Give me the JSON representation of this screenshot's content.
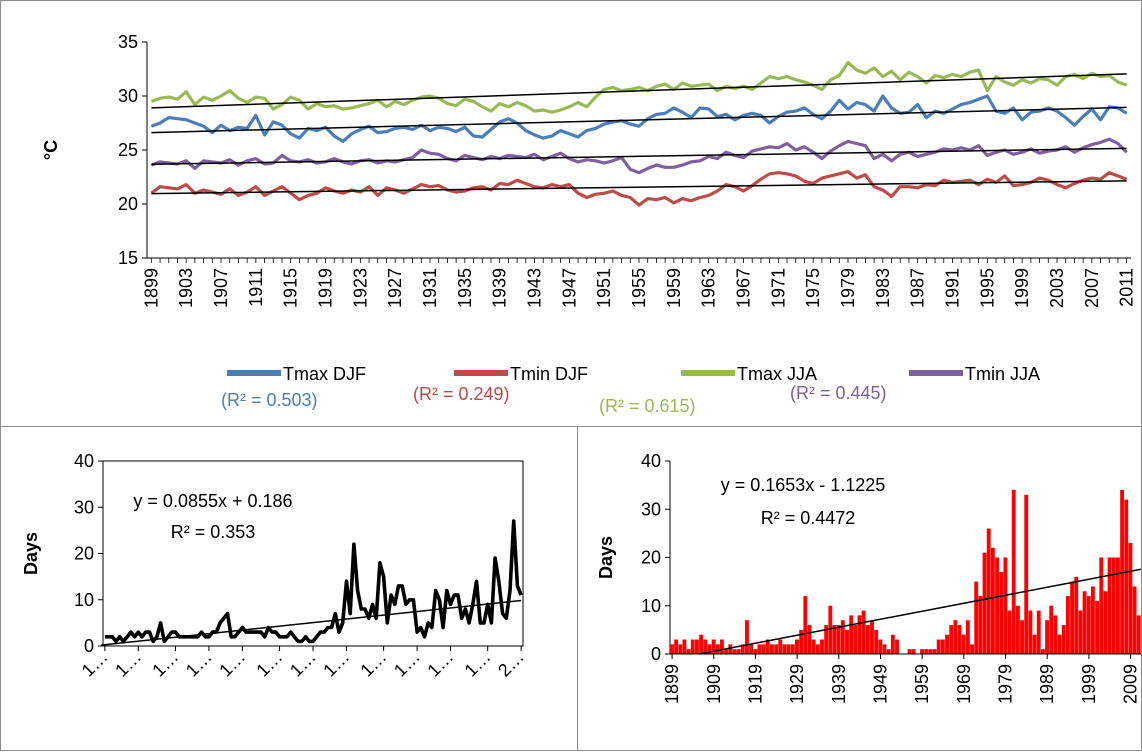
{
  "chart_data": [
    {
      "type": "line",
      "ylabel": "°C",
      "ylim": [
        15,
        35
      ],
      "yticks": [
        15,
        20,
        25,
        30,
        35
      ],
      "x_start": 1899,
      "x_end": 2011,
      "x_tick_labels": [
        "1899",
        "1903",
        "1907",
        "1911",
        "1915",
        "1919",
        "1923",
        "1927",
        "1931",
        "1935",
        "1939",
        "1943",
        "1947",
        "1951",
        "1955",
        "1959",
        "1963",
        "1967",
        "1971",
        "1975",
        "1979",
        "1983",
        "1987",
        "1991",
        "1995",
        "1999",
        "2003",
        "2007",
        "2011"
      ],
      "grid": false,
      "legend_position": "bottom",
      "trend_lines": true,
      "series": [
        {
          "name": "Tmax DJF",
          "color": "#4a7ebb",
          "r2_label": "(R² = 0.503)",
          "start": 1899,
          "values": [
            27.2,
            27.5,
            28,
            27.9,
            27.8,
            27.5,
            27.2,
            26.6,
            27.3,
            26.8,
            27.1,
            27.0,
            28.2,
            26.4,
            27.6,
            27.3,
            26.5,
            26.1,
            27.0,
            26.8,
            27.1,
            26.3,
            25.8,
            26.5,
            26.9,
            27.2,
            26.6,
            26.7,
            27.0,
            27.1,
            26.9,
            27.3,
            26.8,
            27.1,
            27.0,
            26.7,
            27.1,
            26.3,
            26.2,
            26.9,
            27.6,
            27.9,
            27.5,
            26.8,
            26.4,
            26.1,
            26.3,
            26.8,
            26.5,
            26.2,
            26.8,
            27.0,
            27.4,
            27.6,
            27.7,
            27.4,
            27.2,
            27.9,
            28.3,
            28.4,
            28.9,
            28.5,
            28.0,
            28.9,
            28.8,
            28.1,
            28.3,
            27.8,
            28.2,
            28.4,
            28.2,
            27.5,
            28.1,
            28.5,
            28.6,
            28.9,
            28.3,
            27.9,
            28.6,
            29.6,
            28.8,
            29.4,
            29.2,
            28.6,
            30.0,
            28.9,
            28.4,
            28.5,
            29.2,
            28.0,
            28.6,
            28.4,
            28.8,
            29.2,
            29.4,
            29.7,
            30.0,
            28.6,
            28.4,
            28.9,
            27.8,
            28.5,
            28.6,
            28.9,
            28.6,
            28.0,
            27.3,
            28.1,
            28.8,
            27.8,
            29.0,
            28.9,
            28.4
          ]
        },
        {
          "name": "Tmin DJF",
          "color": "#be4b48",
          "r2_label": "(R² = 0.249)",
          "start": 1899,
          "values": [
            21.0,
            21.6,
            21.5,
            21.4,
            21.8,
            21.0,
            21.3,
            21.1,
            20.9,
            21.4,
            20.8,
            21.1,
            21.6,
            20.8,
            21.2,
            21.6,
            21.0,
            20.4,
            20.8,
            21.0,
            21.5,
            21.2,
            21.0,
            21.3,
            21.1,
            21.6,
            20.8,
            21.5,
            21.3,
            21.0,
            21.4,
            21.8,
            21.6,
            21.7,
            21.3,
            21.1,
            21.2,
            21.5,
            21.6,
            21.3,
            21.9,
            21.8,
            22.2,
            21.9,
            21.6,
            21.5,
            21.8,
            21.6,
            21.8,
            21.0,
            20.6,
            20.9,
            21.0,
            21.2,
            20.8,
            20.6,
            19.9,
            20.5,
            20.4,
            20.6,
            20.1,
            20.5,
            20.3,
            20.6,
            20.8,
            21.2,
            21.8,
            21.6,
            21.2,
            21.7,
            22.3,
            22.8,
            22.9,
            22.8,
            22.6,
            22.1,
            21.9,
            22.4,
            22.6,
            22.8,
            23.0,
            22.4,
            22.7,
            21.6,
            21.3,
            20.7,
            21.6,
            21.6,
            21.5,
            21.8,
            21.7,
            22.2,
            22.0,
            22.1,
            22.2,
            21.8,
            22.3,
            22.0,
            22.6,
            21.7,
            21.8,
            22.0,
            22.4,
            22.2,
            21.8,
            21.5,
            21.9,
            22.2,
            22.4,
            22.3,
            22.9,
            22.6,
            22.3
          ]
        },
        {
          "name": "Tmax JJA",
          "color": "#98b954",
          "r2_label": "(R² = 0.615)",
          "start": 1899,
          "values": [
            29.5,
            29.8,
            29.9,
            29.7,
            30.4,
            29.2,
            29.9,
            29.6,
            30.0,
            30.5,
            29.8,
            29.4,
            29.9,
            29.8,
            28.8,
            29.2,
            29.9,
            29.6,
            28.8,
            29.3,
            29.0,
            29.1,
            28.8,
            28.9,
            29.1,
            29.3,
            29.6,
            29.0,
            29.5,
            29.2,
            29.6,
            29.9,
            30.0,
            29.8,
            29.3,
            29.1,
            29.7,
            29.5,
            29.0,
            28.6,
            29.3,
            29.0,
            29.4,
            29.1,
            28.6,
            28.7,
            28.5,
            28.7,
            29.0,
            29.4,
            29.0,
            29.9,
            30.6,
            30.8,
            30.5,
            30.6,
            30.8,
            30.5,
            30.9,
            31.1,
            30.6,
            31.2,
            30.9,
            31.0,
            31.1,
            30.5,
            30.9,
            30.7,
            30.9,
            30.6,
            31.2,
            31.8,
            31.6,
            31.8,
            31.5,
            31.3,
            31.0,
            30.6,
            31.5,
            31.9,
            33.1,
            32.4,
            32.1,
            32.6,
            31.8,
            32.3,
            31.5,
            32.2,
            31.8,
            31.2,
            31.9,
            31.7,
            32.0,
            31.8,
            32.2,
            32.4,
            30.5,
            31.8,
            31.3,
            31.0,
            31.5,
            31.2,
            31.6,
            31.5,
            31.0,
            31.8,
            32.0,
            31.6,
            32.1,
            31.8,
            31.9,
            31.3,
            31.0
          ]
        },
        {
          "name": "Tmin JJA",
          "color": "#7d60a0",
          "r2_label": "(R² = 0.445)",
          "start": 1899,
          "values": [
            23.6,
            23.9,
            23.8,
            23.7,
            24.0,
            23.3,
            24.0,
            23.9,
            23.8,
            24.1,
            23.6,
            24.0,
            24.2,
            23.7,
            23.8,
            24.5,
            24.0,
            23.9,
            24.1,
            23.8,
            23.9,
            24.2,
            23.9,
            23.7,
            24.0,
            24.1,
            23.8,
            24.0,
            23.9,
            24.1,
            24.3,
            25.0,
            24.7,
            24.6,
            24.2,
            24.0,
            24.5,
            24.3,
            24.1,
            24.4,
            24.2,
            24.5,
            24.4,
            24.3,
            24.6,
            24.1,
            24.4,
            24.7,
            24.2,
            23.9,
            24.1,
            24.0,
            23.8,
            24.0,
            24.3,
            23.2,
            22.9,
            23.3,
            23.6,
            23.4,
            23.4,
            23.6,
            23.9,
            24.0,
            24.4,
            24.2,
            24.8,
            24.5,
            24.3,
            24.9,
            25.1,
            25.3,
            25.2,
            25.6,
            25.0,
            25.3,
            24.8,
            24.2,
            24.9,
            25.4,
            25.8,
            25.6,
            25.4,
            24.2,
            24.6,
            24.0,
            24.6,
            24.8,
            24.4,
            24.6,
            24.8,
            25.1,
            25.0,
            25.2,
            25.0,
            25.4,
            24.5,
            24.8,
            25.0,
            24.6,
            24.8,
            25.1,
            24.7,
            24.9,
            25.0,
            25.3,
            24.8,
            25.2,
            25.5,
            25.7,
            26.0,
            25.6,
            24.8
          ]
        }
      ]
    },
    {
      "type": "line",
      "ylabel": "Days",
      "ylim": [
        0,
        40
      ],
      "yticks": [
        0,
        10,
        20,
        30,
        40
      ],
      "x_start": 1899,
      "x_end": 2011,
      "x_tick_labels": [
        "1…",
        "1…",
        "1…",
        "1…",
        "1…",
        "1…",
        "1…",
        "1…",
        "1…",
        "1…",
        "1…",
        "1…",
        "2…"
      ],
      "equation": "y = 0.0855x + 0.186",
      "r2": "R² = 0.353",
      "trend": {
        "slope": 0.0855,
        "intercept": 0.186
      },
      "series": [
        {
          "name": "",
          "color": "#000000",
          "values": [
            2,
            2,
            2,
            1,
            2,
            1,
            2,
            3,
            2,
            3,
            2,
            3,
            3,
            1,
            2,
            5,
            1,
            2,
            3,
            3,
            2,
            2,
            2,
            2,
            2,
            2,
            3,
            2,
            2,
            3,
            3,
            5,
            6,
            7,
            2,
            2,
            3,
            4,
            3,
            3,
            3,
            3,
            3,
            2,
            4,
            3,
            3,
            2,
            2,
            2,
            3,
            2,
            1,
            1,
            2,
            1,
            1,
            2,
            3,
            3,
            4,
            4,
            7,
            3,
            5,
            14,
            7,
            22,
            12,
            8,
            8,
            6,
            9,
            6,
            18,
            15,
            5,
            11,
            9,
            13,
            13,
            9,
            10,
            10,
            3,
            4,
            2,
            5,
            4,
            12,
            10,
            4,
            12,
            9,
            11,
            11,
            6,
            8,
            5,
            9,
            14,
            5,
            5,
            9,
            5,
            19,
            14,
            7,
            6,
            12,
            27,
            13,
            11
          ]
        }
      ]
    },
    {
      "type": "bar",
      "ylabel": "Days",
      "ylim": [
        0,
        40
      ],
      "yticks": [
        0,
        10,
        20,
        30,
        40
      ],
      "x_start": 1899,
      "x_end": 2011,
      "x_tick_labels": [
        "1899",
        "1909",
        "1919",
        "1929",
        "1939",
        "1949",
        "1959",
        "1969",
        "1979",
        "1989",
        "1999",
        "2009"
      ],
      "equation": "y = 0.1653x - 1.1225",
      "r2": "R² = 0.4472",
      "trend": {
        "slope": 0.1653,
        "intercept": -1.1225
      },
      "series": [
        {
          "name": "",
          "color": "#ff0000",
          "values": [
            2,
            3,
            2,
            3,
            1,
            3,
            3,
            4,
            3,
            2,
            3,
            2,
            3,
            1,
            2,
            1,
            1,
            2,
            7,
            2,
            1,
            2,
            2,
            3,
            2,
            2,
            3,
            2,
            2,
            2,
            3,
            5,
            12,
            6,
            3,
            2,
            3,
            6,
            10,
            6,
            6,
            7,
            5,
            8,
            6,
            8,
            9,
            6,
            7,
            5,
            3,
            2,
            1,
            4,
            3,
            0,
            0,
            1,
            1,
            0,
            1,
            1,
            1,
            1,
            3,
            3,
            4,
            6,
            7,
            6,
            4,
            7,
            2,
            15,
            12,
            21,
            26,
            22,
            20,
            17,
            20,
            9,
            34,
            10,
            7,
            33,
            9,
            4,
            9,
            1,
            7,
            10,
            8,
            4,
            6,
            12,
            15,
            16,
            9,
            13,
            12,
            14,
            11,
            20,
            13,
            20,
            20,
            20,
            34,
            32,
            23,
            14,
            8
          ]
        }
      ]
    }
  ]
}
